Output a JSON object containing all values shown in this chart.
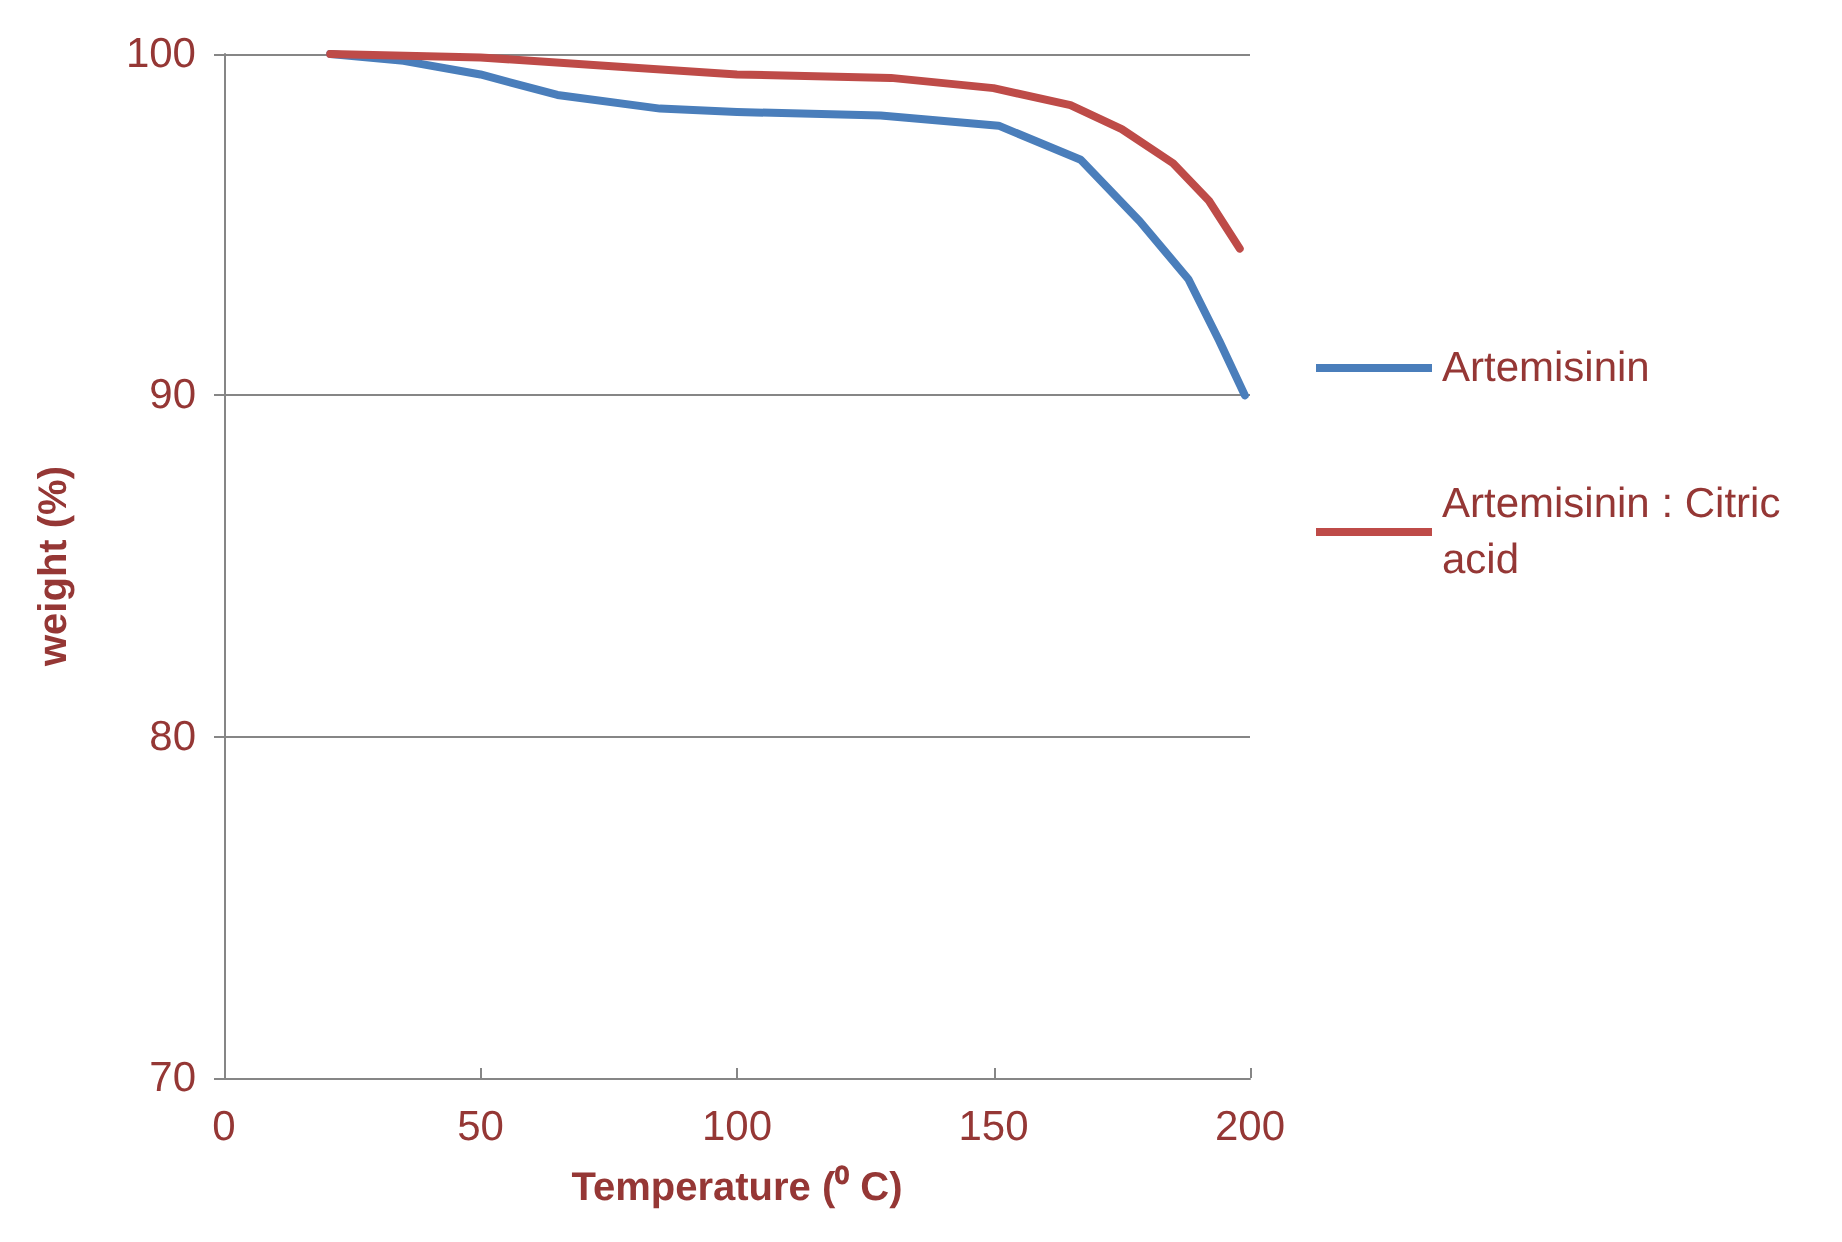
{
  "chart_data": {
    "type": "line",
    "xlabel": "Temperature (⁰ C)",
    "ylabel": "weight (%)",
    "xlim": [
      0,
      200
    ],
    "xticks": [
      0,
      50,
      100,
      150,
      200
    ],
    "ylim": [
      70,
      100
    ],
    "yticks": [
      70,
      80,
      90,
      100
    ],
    "grid": "y",
    "legend": "right",
    "marker": "none",
    "line_style": "solid",
    "series": [
      {
        "name": "Artemisinin",
        "color": "#4a7ebb",
        "x": [
          20.7,
          35,
          50,
          65,
          85,
          100,
          128,
          151,
          167,
          178.5,
          188,
          194,
          199
        ],
        "values": [
          100,
          99.8,
          99.4,
          98.8,
          98.4,
          98.3,
          98.2,
          97.9,
          96.9,
          95.1,
          93.4,
          91.6,
          90
        ]
      },
      {
        "name": "Artemisinin : Citric acid",
        "color": "#be4b48",
        "x": [
          20.7,
          50,
          80,
          100,
          130,
          150,
          165,
          175,
          185,
          192,
          198
        ],
        "values": [
          100,
          99.9,
          99.6,
          99.4,
          99.3,
          99.0,
          98.5,
          97.8,
          96.8,
          95.7,
          94.3
        ]
      }
    ]
  }
}
